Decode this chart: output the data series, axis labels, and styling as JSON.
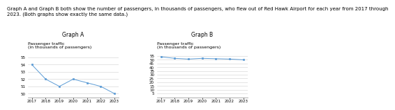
{
  "years": [
    2017,
    2018,
    2019,
    2020,
    2021,
    2022,
    2023
  ],
  "values": [
    54,
    52,
    51,
    52,
    51.5,
    51,
    50
  ],
  "graphA_title": "Graph A",
  "graphB_title": "Graph B",
  "ylabel": "Passenger traffic\n(in thousands of passengers)",
  "line_color": "#5b9bd5",
  "marker_color": "#5b9bd5",
  "graphA_ylim": [
    49.5,
    55.5
  ],
  "graphA_yticks": [
    50,
    51,
    52,
    53,
    54,
    55
  ],
  "graphB_ylim": [
    0,
    58
  ],
  "graphB_yticks": [
    5,
    10,
    15,
    20,
    25,
    30,
    35,
    40,
    45,
    50,
    55
  ],
  "header_text": "Graph A and Graph B both show the number of passengers, in thousands of passengers, who flew out of Red Hawk Airport for each year from 2017 through\n2023. (Both graphs show exactly the same data.)",
  "header_fontsize": 5.0,
  "title_fontsize": 5.5,
  "ylabel_fontsize": 4.5,
  "tick_fontsize": 4.0,
  "bg_color": "#ffffff",
  "grid_color": "#d0d0d0"
}
